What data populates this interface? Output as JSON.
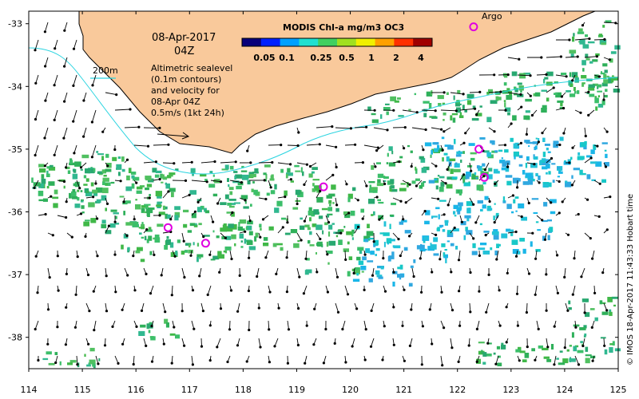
{
  "map": {
    "date_label": "08-Apr-2017",
    "time_label": "04Z",
    "contour_legend": "200m",
    "desc_lines": [
      "Altimetric sealevel",
      "(0.1m contours)",
      "and velocity for",
      "08-Apr 04Z",
      "0.5m/s (1kt 24h)"
    ],
    "argo_label": "Argo",
    "credit": "© IMOS 18-Apr-2017 11:43:33 Hobart time",
    "x_ticks": [
      "114",
      "115",
      "116",
      "117",
      "118",
      "119",
      "120",
      "121",
      "122",
      "123",
      "124",
      "125"
    ],
    "y_ticks": [
      "-33",
      "-34",
      "-35",
      "-36",
      "-37",
      "-38"
    ],
    "colors": {
      "land": "#f9c99b",
      "coast": "#000000",
      "contour_200m": "#2ad4e0",
      "argo": "#e000e0",
      "arrow": "#000000"
    }
  },
  "colorbar": {
    "title": "MODIS Chl-a mg/m3 OC3",
    "labels": [
      "0.05",
      "0.1",
      "0.25",
      "0.5",
      "1",
      "2",
      "4"
    ],
    "colors": [
      "#08007a",
      "#0020ff",
      "#00a0ff",
      "#20e0d0",
      "#40d060",
      "#a0e020",
      "#f0f000",
      "#ffa000",
      "#ff3000",
      "#a00000"
    ]
  },
  "argo_floats": [
    {
      "lon": 122.3,
      "lat": -33.05
    },
    {
      "lon": 122.4,
      "lat": -35.0
    },
    {
      "lon": 122.5,
      "lat": -35.45
    },
    {
      "lon": 119.5,
      "lat": -35.6
    },
    {
      "lon": 116.6,
      "lat": -36.25
    },
    {
      "lon": 117.3,
      "lat": -36.5
    }
  ]
}
